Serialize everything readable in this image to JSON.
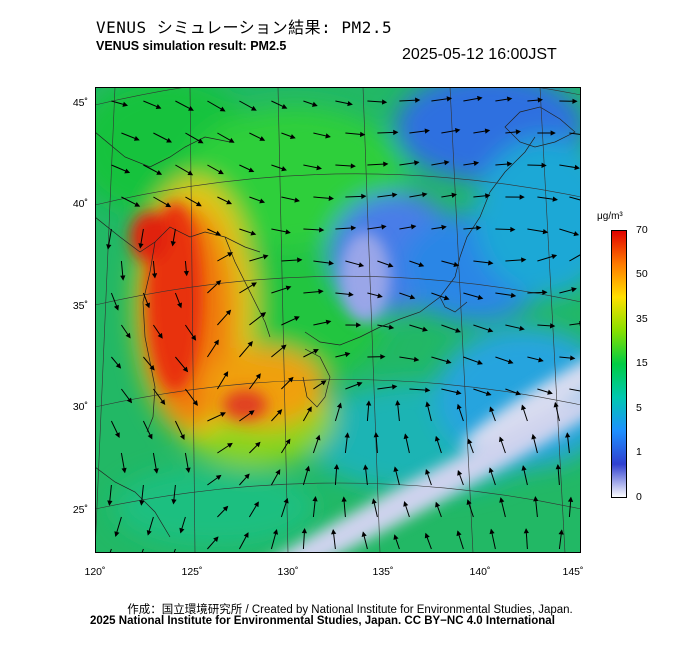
{
  "header": {
    "title_ja": "VENUS シミュレーション結果: PM2.5",
    "title_en": "VENUS simulation result: PM2.5",
    "timestamp": "2025-05-12 16:00JST"
  },
  "map": {
    "lat_labels": [
      "45˚",
      "40˚",
      "35˚",
      "30˚",
      "25˚"
    ],
    "lon_labels": [
      "120˚",
      "125˚",
      "130˚",
      "135˚",
      "140˚",
      "145˚"
    ],
    "field": "PM2.5 concentration with wind vectors",
    "palette": {
      "very_low": "#e6e6f2",
      "low": "#3366dd",
      "mid": "#00bbaa",
      "high": "#22cc22",
      "very_high": "#e83010"
    }
  },
  "colorbar": {
    "unit": "μg/m³",
    "ticks": [
      "70",
      "50",
      "35",
      "15",
      "5",
      "1",
      "0"
    ],
    "colors": [
      "#e00000",
      "#ff7a00",
      "#ffe000",
      "#88e000",
      "#00cc44",
      "#00c8b0",
      "#1e90ff",
      "#3040d0",
      "#ffffff"
    ]
  },
  "footer": {
    "credit": "作成：国立環境研究所 / Created by National Institute for Environmental Studies, Japan.",
    "license": "2025 National Institute for Environmental Studies, Japan. CC BY−NC 4.0 International"
  }
}
